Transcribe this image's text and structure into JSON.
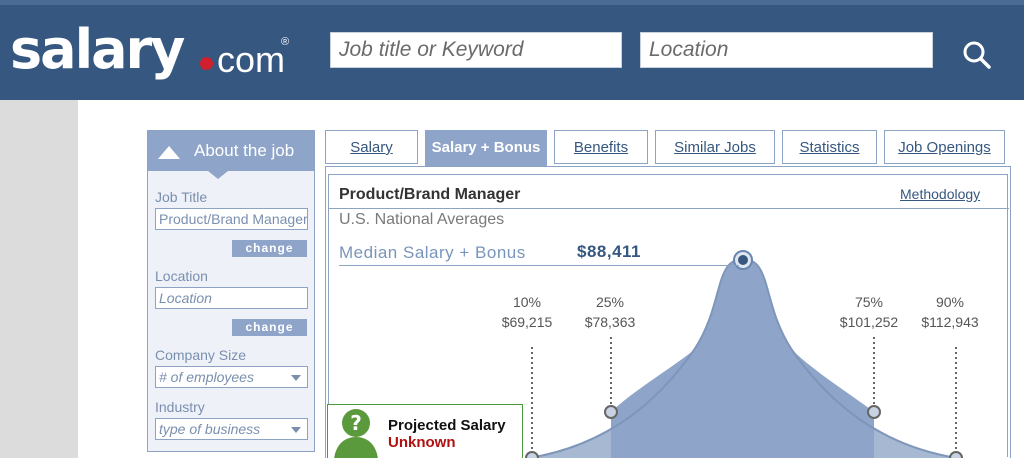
{
  "header": {
    "logo_main": "salary",
    "logo_tld": "com",
    "logo_reg": "®",
    "job_placeholder": "Job title or Keyword",
    "location_placeholder": "Location",
    "search_icon": "search-icon",
    "color": "#36577f"
  },
  "sidebar": {
    "title": "About the job",
    "job_title_label": "Job Title",
    "job_title_value": "Product/Brand Manager",
    "change_label": "change",
    "location_label": "Location",
    "location_placeholder": "Location",
    "company_size_label": "Company Size",
    "company_size_value": "# of employees",
    "industry_label": "Industry",
    "industry_value": "type of business"
  },
  "tabs": [
    {
      "label": "Salary",
      "active": false
    },
    {
      "label": "Salary + Bonus",
      "active": true
    },
    {
      "label": "Benefits",
      "active": false
    },
    {
      "label": "Similar Jobs",
      "active": false
    },
    {
      "label": "Statistics",
      "active": false
    },
    {
      "label": "Job Openings",
      "active": false
    }
  ],
  "panel": {
    "job_title": "Product/Brand Manager",
    "methodology": "Methodology",
    "region": "U.S. National Averages",
    "median_label": "Median Salary + Bonus",
    "median_value": "$88,411"
  },
  "percentiles": [
    {
      "pct": "10%",
      "value": "$69,215"
    },
    {
      "pct": "25%",
      "value": "$78,363"
    },
    {
      "pct": "75%",
      "value": "$101,252"
    },
    {
      "pct": "90%",
      "value": "$112,943"
    }
  ],
  "projected": {
    "line1": "Projected Salary",
    "line2": "Unknown",
    "icon": "question-person-icon"
  }
}
